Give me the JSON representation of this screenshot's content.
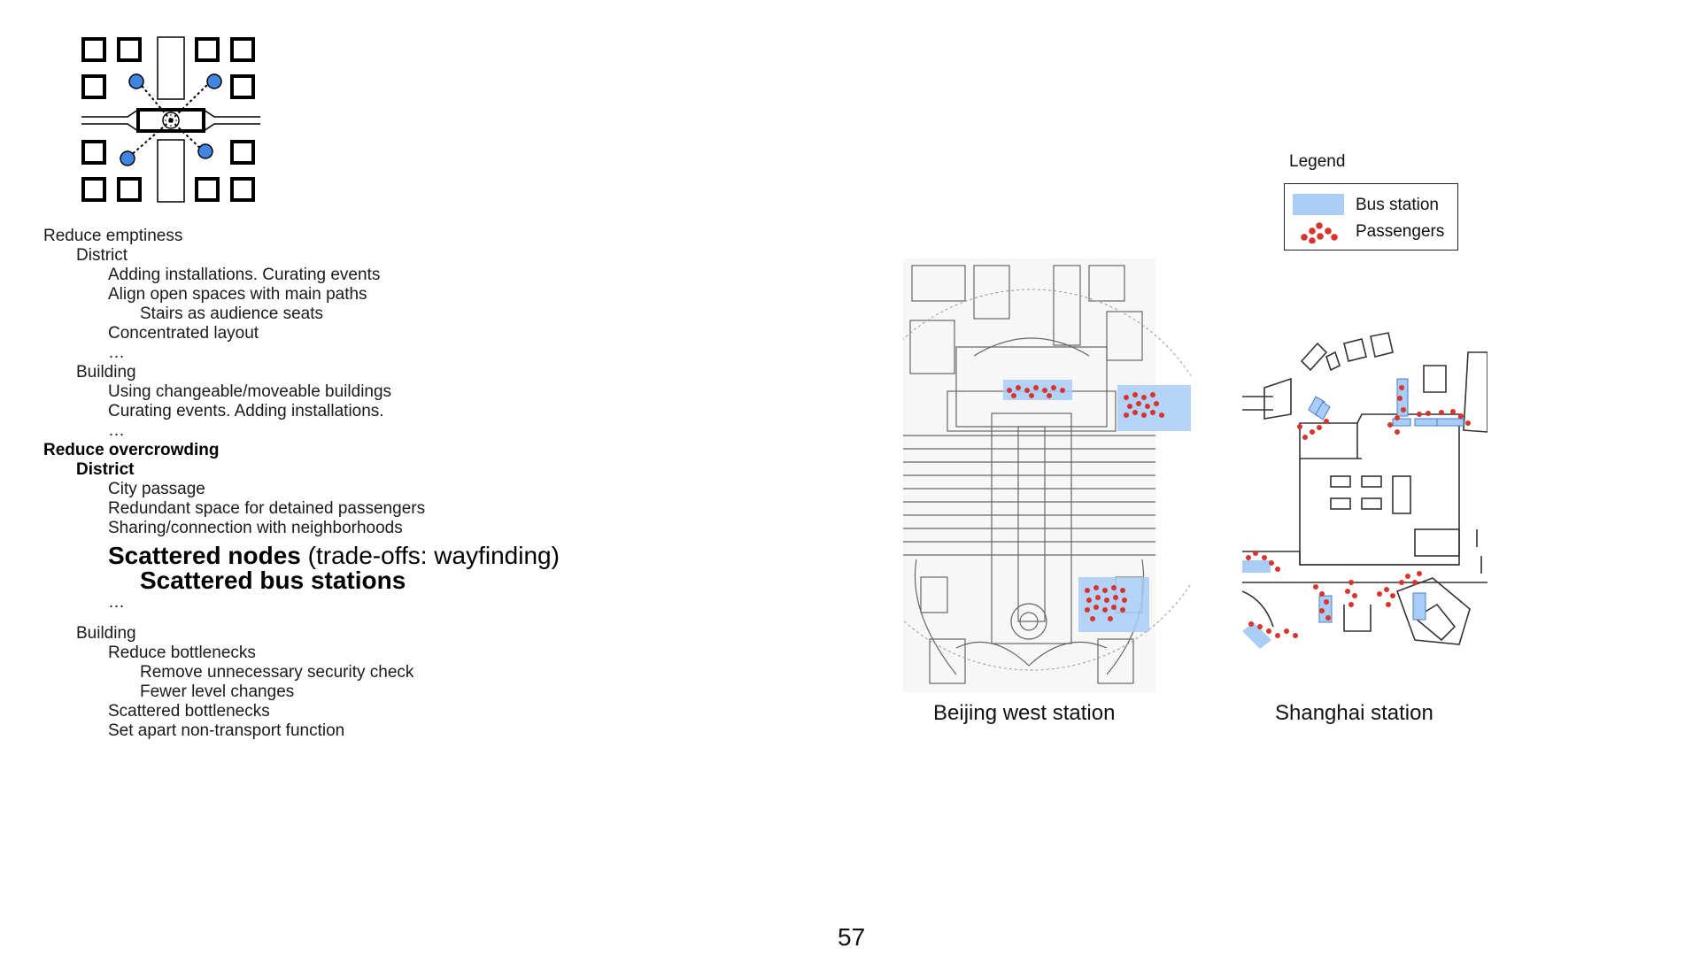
{
  "outline": {
    "line1": "Reduce emptiness",
    "line2": "District",
    "line3": "Adding installations. Curating events",
    "line4": "Align open spaces with main paths",
    "line5": "Stairs as audience seats",
    "line6": "Concentrated layout",
    "line7": "…",
    "line8": "Building",
    "line9": "Using changeable/moveable buildings",
    "line10": "Curating events. Adding installations.",
    "line11": "…",
    "line12": "Reduce overcrowding",
    "line13": "District",
    "line14": "City passage",
    "line15": "Redundant space for detained passengers",
    "line16": "Sharing/connection with neighborhoods",
    "line17_bold": "Scattered nodes",
    "line17_rest": " (trade-offs: wayfinding)",
    "line18": "Scattered bus stations",
    "line19": "…",
    "line20": "Building",
    "line21": "Reduce bottlenecks",
    "line22": "Remove unnecessary security check",
    "line23": "Fewer level changes",
    "line24": "Scattered bottlenecks",
    "line25": "Set apart non-transport function"
  },
  "legend": {
    "title": "Legend",
    "bus_station": "Bus station",
    "passengers": "Passengers",
    "bus_color": "#a9cdf7",
    "passenger_color": "#d9342b"
  },
  "maps": {
    "beijing_caption": "Beijing west station",
    "shanghai_caption": "Shanghai station"
  },
  "page_number": "57",
  "icons": [
    "scattered-nodes-diagram-icon",
    "beijing-west-station-map",
    "shanghai-station-map"
  ]
}
